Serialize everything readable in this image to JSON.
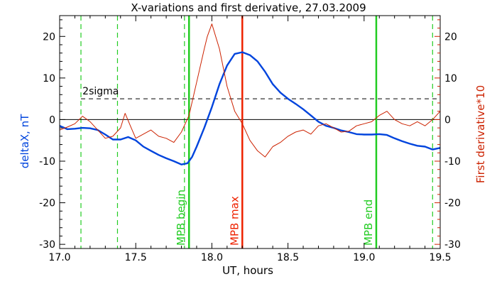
{
  "chart_data": {
    "type": "line",
    "title": "X-variations and first derivative, 27.03.2009",
    "xlabel": "UT, hours",
    "ylabel": "deltaX, nT",
    "y2label": "First derivative*10",
    "xlim": [
      17.0,
      19.5
    ],
    "ylim": [
      -31,
      25
    ],
    "x_ticks": [
      "17.0",
      "17.5",
      "18.0",
      "18.5",
      "19.0",
      "19.5"
    ],
    "y_ticks": [
      "-30",
      "-20",
      "-10",
      "0",
      "10",
      "20"
    ],
    "y2_ticks": [
      "-30",
      "-20",
      "-10",
      "0",
      "10",
      "20"
    ],
    "colors": {
      "deltaX": "#0044dd",
      "derivative": "#cc2200",
      "markers_green": "#22cc22",
      "max_red": "#ee2200",
      "axes": "#000000"
    },
    "sigma": {
      "label": "2sigma",
      "value": 5,
      "label_x": 17.15
    },
    "zero_line": 0,
    "dashed_green_x": [
      17.14,
      17.38,
      17.82,
      19.45
    ],
    "vertical_markers": [
      {
        "label": "MPB begin",
        "x": 17.85,
        "color": "#22cc22"
      },
      {
        "label": "MPB max",
        "x": 18.2,
        "color": "#ee2200"
      },
      {
        "label": "MPB end",
        "x": 19.08,
        "color": "#22cc22"
      }
    ],
    "series": [
      {
        "name": "deltaX, nT",
        "color": "#0044dd",
        "x": [
          17.0,
          17.05,
          17.1,
          17.15,
          17.2,
          17.25,
          17.3,
          17.35,
          17.4,
          17.45,
          17.5,
          17.55,
          17.6,
          17.65,
          17.7,
          17.75,
          17.8,
          17.84,
          17.87,
          17.9,
          17.95,
          18.0,
          18.05,
          18.1,
          18.15,
          18.2,
          18.25,
          18.3,
          18.35,
          18.4,
          18.45,
          18.5,
          18.55,
          18.6,
          18.65,
          18.7,
          18.75,
          18.8,
          18.85,
          18.9,
          18.95,
          19.0,
          19.05,
          19.1,
          19.15,
          19.2,
          19.25,
          19.3,
          19.35,
          19.4,
          19.45,
          19.5
        ],
        "values": [
          -1.5,
          -2.3,
          -2.2,
          -2.0,
          -2.1,
          -2.5,
          -3.6,
          -4.8,
          -4.8,
          -4.2,
          -5.0,
          -6.5,
          -7.5,
          -8.5,
          -9.3,
          -10.0,
          -10.8,
          -10.5,
          -9.0,
          -6.5,
          -2.0,
          3.0,
          8.5,
          13.0,
          15.8,
          16.2,
          15.5,
          14.0,
          11.5,
          8.5,
          6.5,
          5.0,
          3.8,
          2.5,
          1.0,
          -0.5,
          -1.5,
          -2.0,
          -2.6,
          -3.0,
          -3.5,
          -3.6,
          -3.6,
          -3.5,
          -3.7,
          -4.5,
          -5.2,
          -5.8,
          -6.3,
          -6.5,
          -7.2,
          -6.8
        ]
      },
      {
        "name": "First derivative*10",
        "color": "#cc2200",
        "x": [
          17.0,
          17.05,
          17.1,
          17.15,
          17.2,
          17.25,
          17.3,
          17.35,
          17.4,
          17.43,
          17.47,
          17.5,
          17.55,
          17.6,
          17.65,
          17.7,
          17.75,
          17.8,
          17.85,
          17.9,
          17.95,
          17.97,
          18.0,
          18.05,
          18.1,
          18.15,
          18.2,
          18.25,
          18.3,
          18.35,
          18.4,
          18.45,
          18.5,
          18.55,
          18.6,
          18.65,
          18.7,
          18.75,
          18.8,
          18.85,
          18.9,
          18.95,
          19.0,
          19.05,
          19.1,
          19.15,
          19.2,
          19.25,
          19.3,
          19.35,
          19.4,
          19.45,
          19.5
        ],
        "values": [
          -2.5,
          -1.8,
          -1.0,
          0.8,
          -0.5,
          -2.5,
          -4.5,
          -4.0,
          -2.0,
          1.5,
          -2.0,
          -4.5,
          -3.5,
          -2.5,
          -4.0,
          -4.5,
          -5.5,
          -3.0,
          1.0,
          9.0,
          17.0,
          20.0,
          23.0,
          17.0,
          8.0,
          2.0,
          -1.0,
          -5.0,
          -7.5,
          -9.0,
          -6.5,
          -5.5,
          -4.0,
          -3.0,
          -2.5,
          -3.5,
          -1.5,
          -1.0,
          -2.0,
          -3.0,
          -2.8,
          -1.5,
          -1.0,
          -0.5,
          1.0,
          2.0,
          0.0,
          -1.0,
          -1.5,
          -0.5,
          -1.5,
          0.0,
          2.0
        ]
      }
    ]
  }
}
